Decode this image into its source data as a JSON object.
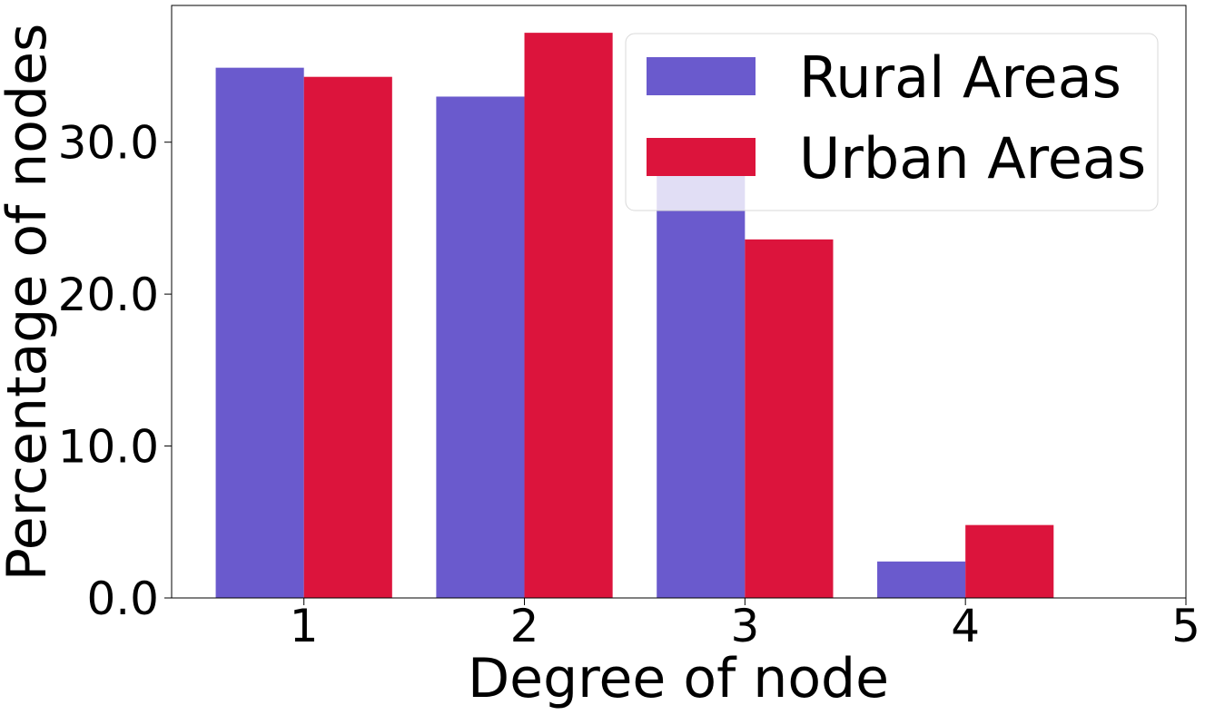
{
  "chart_data": {
    "type": "bar",
    "categories": [
      "1",
      "2",
      "3",
      "4"
    ],
    "series": [
      {
        "name": "Rural Areas",
        "color": "#6a5acd",
        "values": [
          34.9,
          33.0,
          27.8,
          2.4
        ]
      },
      {
        "name": "Urban Areas",
        "color": "#dc143c",
        "values": [
          34.3,
          37.2,
          23.6,
          4.8
        ]
      }
    ],
    "x_ticks": [
      "1",
      "2",
      "3",
      "4",
      "5"
    ],
    "y_ticks": [
      "0.0",
      "10.0",
      "20.0",
      "30.0"
    ],
    "xlim": [
      0.4,
      5
    ],
    "ylim": [
      0,
      39
    ],
    "xlabel": "Degree of node",
    "ylabel": "Percentage of nodes",
    "title": "",
    "grid": false,
    "legend_position": "top-right"
  }
}
